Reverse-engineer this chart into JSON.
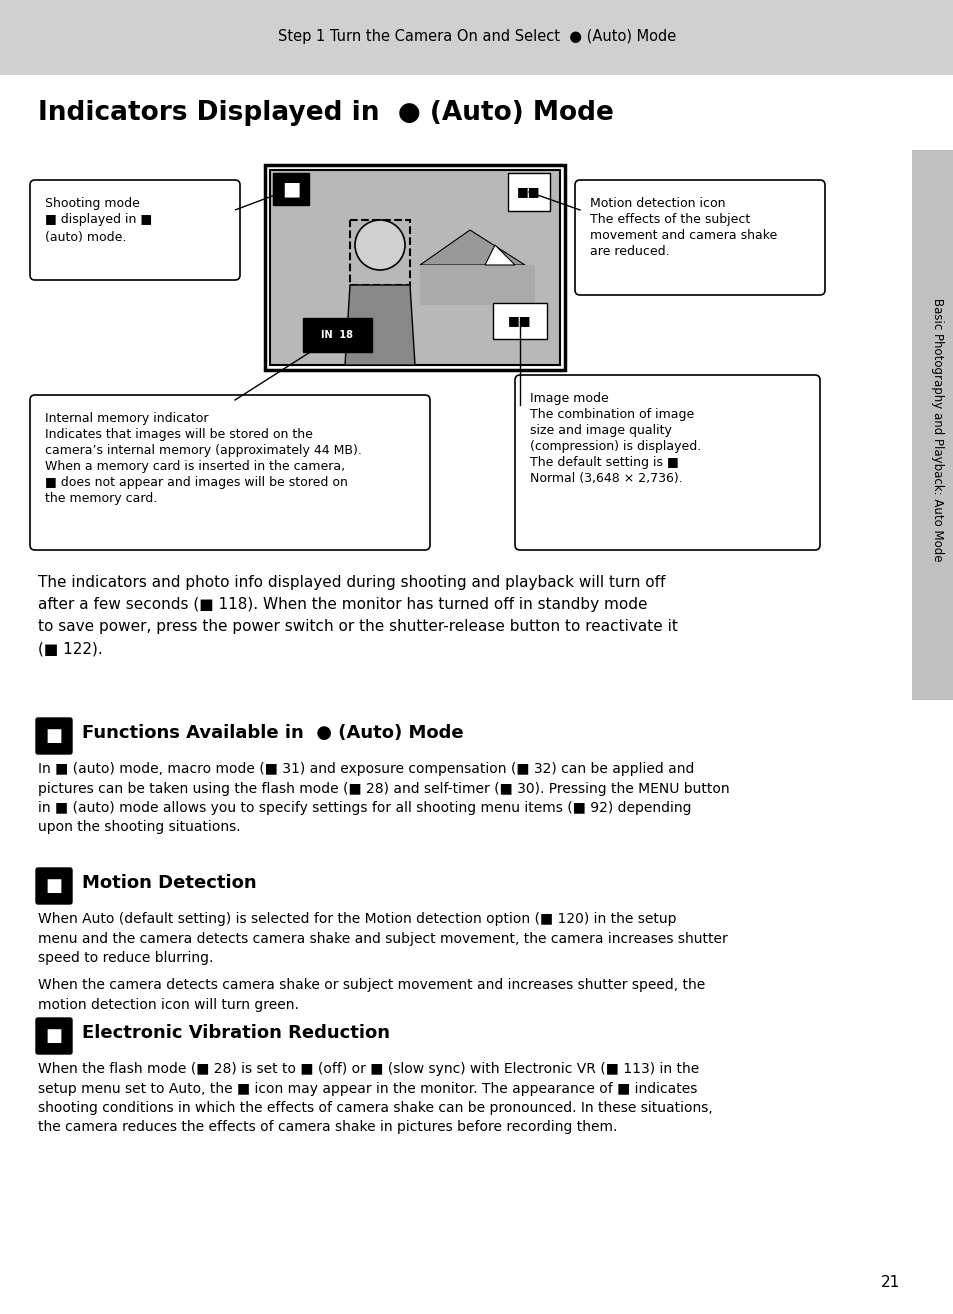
{
  "page_bg": "#ffffff",
  "header_bg": "#d0d0d0",
  "header_text": "Step 1 Turn the Camera On and Select ■ (Auto) Mode",
  "title": "Indicators Displayed in ■ (Auto) Mode",
  "sidebar_bg": "#c0c0c0",
  "sidebar_text": "Basic Photography and Playback: Auto Mode",
  "page_number": "21",
  "box1_title": "Shooting mode",
  "box1_body": "■ displayed in ■\n(auto) mode.",
  "box2_title": "Motion detection icon",
  "box2_body": "The effects of the subject\nmovement and camera shake\nare reduced.",
  "box3_title": "Internal memory indicator",
  "box3_body": "Indicates that images will be stored on the\ncamera’s internal memory (approximately 44 MB).\nWhen a memory card is inserted in the camera,\n■ does not appear and images will be stored on\nthe memory card.",
  "box4_title": "Image mode",
  "box4_body": "The combination of image\nsize and image quality\n(compression) is displayed.\nThe default setting is ■\nNormal (3,648 × 2,736).",
  "para1": "The indicators and photo info displayed during shooting and playback will turn off after a few seconds (■ 118). When the monitor has turned off in standby mode to save power, press the power switch or the shutter-release button to reactivate it (■ 122).",
  "section1_icon": "■",
  "section1_title": "Functions Available in ■ (Auto) Mode",
  "section1_body": "In ■ (auto) mode, macro mode (■ 31) and exposure compensation (■ 32) can be applied and pictures can be taken using the flash mode (■ 28) and self-timer (■ 30). Pressing the MENU button in ■ (auto) mode allows you to specify settings for all shooting menu items (■ 92) depending upon the shooting situations.",
  "section2_icon": "■",
  "section2_title": "Motion Detection",
  "section2_body1": "When Auto (default setting) is selected for the Motion detection option (■ 120) in the setup menu and the camera detects camera shake and subject movement, the camera increases shutter speed to reduce blurring.",
  "section2_body2": "When the camera detects camera shake or subject movement and increases shutter speed, the motion detection icon will turn green.",
  "section3_icon": "■",
  "section3_title": "Electronic Vibration Reduction",
  "section3_body": "When the flash mode (■ 28) is set to ■ (off) or ■ (slow sync) with Electronic VR (■ 113) in the setup menu set to Auto, the ■ icon may appear in the monitor. The appearance of ■ indicates shooting conditions in which the effects of camera shake can be pronounced. In these situations, the camera reduces the effects of camera shake in pictures before recording them."
}
